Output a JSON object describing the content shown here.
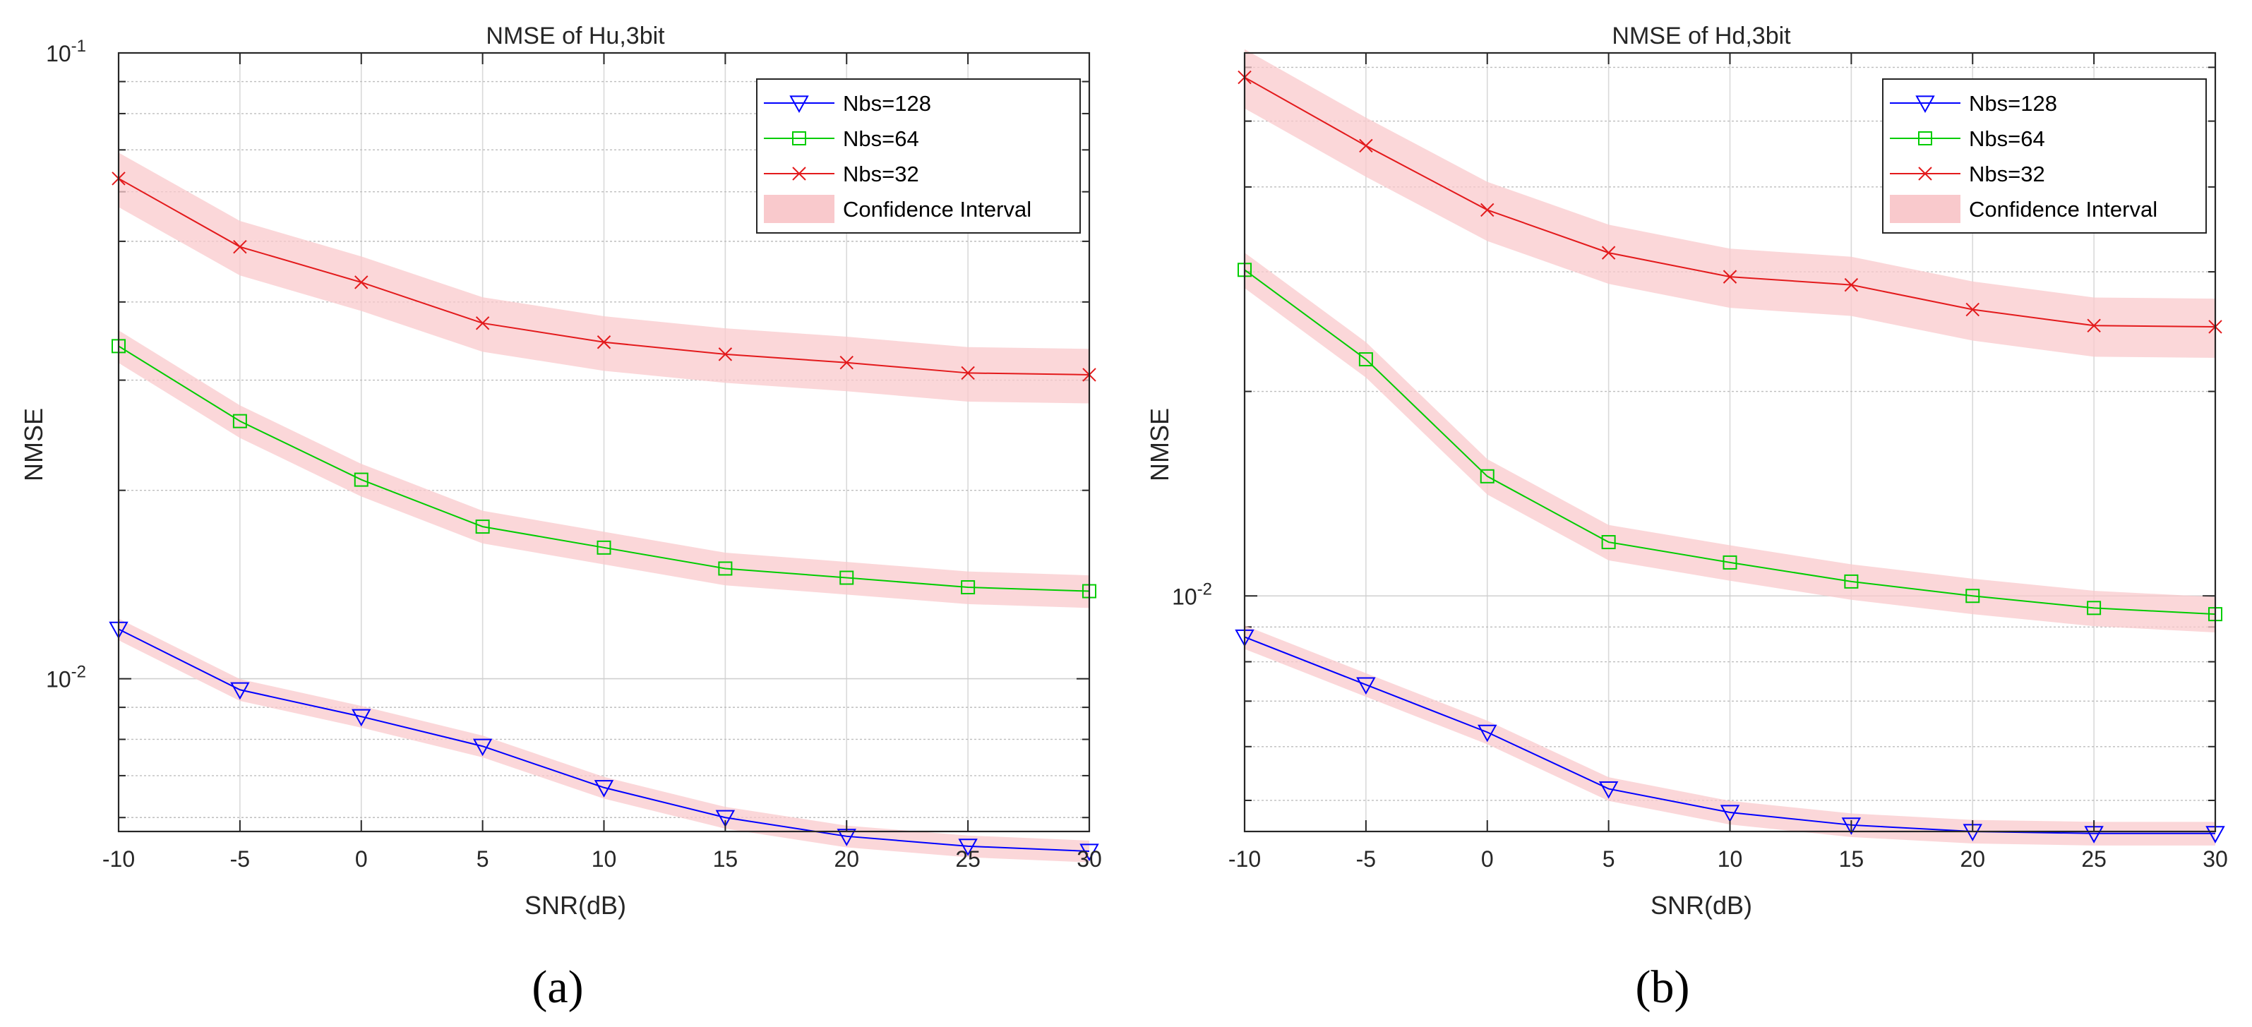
{
  "colors": {
    "nbs128": "#0000ff",
    "nbs64": "#00cc00",
    "nbs32": "#e31a1c",
    "band": "#f9c9cc",
    "grid": "#d9d9d9",
    "axis": "#262626"
  },
  "chart_data": [
    {
      "type": "line",
      "caption": "(a)",
      "title": "NMSE of Hu,3bit",
      "xlabel": "SNR(dB)",
      "ylabel": "NMSE",
      "yscale": "log",
      "x": [
        -10,
        -5,
        0,
        5,
        10,
        15,
        20,
        25,
        30
      ],
      "xlim": [
        -10,
        30
      ],
      "ylim": [
        0.0057,
        0.1
      ],
      "x_tick_labels": [
        "-10",
        "-5",
        "0",
        "5",
        "10",
        "15",
        "20",
        "25",
        "30"
      ],
      "y_tick_labels": [
        {
          "value": 0.1,
          "base": "10",
          "exp": "-1"
        },
        {
          "value": 0.01,
          "base": "10",
          "exp": "-2"
        }
      ],
      "grid": true,
      "legend_position": "top-right",
      "series": [
        {
          "name": "Nbs=128",
          "marker": "triangle-down",
          "color_key": "nbs128",
          "values": [
            0.012,
            0.0096,
            0.0087,
            0.0078,
            0.0067,
            0.006,
            0.0056,
            0.0054,
            0.0053
          ],
          "band": 0.04
        },
        {
          "name": "Nbs=64",
          "marker": "square",
          "color_key": "nbs64",
          "values": [
            0.034,
            0.0258,
            0.0208,
            0.0175,
            0.0162,
            0.015,
            0.0145,
            0.014,
            0.0138
          ],
          "band": 0.06
        },
        {
          "name": "Nbs=32",
          "marker": "x",
          "color_key": "nbs32",
          "values": [
            0.063,
            0.049,
            0.043,
            0.037,
            0.0345,
            0.033,
            0.032,
            0.0308,
            0.0306
          ],
          "band": 0.1
        }
      ],
      "legend_entries": [
        "Nbs=128",
        "Nbs=64",
        "Nbs=32",
        "Confidence Interval"
      ]
    },
    {
      "type": "line",
      "caption": "(b)",
      "title": "NMSE of Hd,3bit",
      "xlabel": "SNR(dB)",
      "ylabel": "NMSE",
      "yscale": "log",
      "x": [
        -10,
        -5,
        0,
        5,
        10,
        15,
        20,
        25,
        30
      ],
      "xlim": [
        -10,
        30
      ],
      "ylim": [
        0.0045,
        0.063
      ],
      "x_tick_labels": [
        "-10",
        "-5",
        "0",
        "5",
        "10",
        "15",
        "20",
        "25",
        "30"
      ],
      "y_tick_labels": [
        {
          "value": 0.01,
          "base": "10",
          "exp": "-2"
        }
      ],
      "grid": true,
      "legend_position": "top-right",
      "series": [
        {
          "name": "Nbs=128",
          "marker": "triangle-down",
          "color_key": "nbs128",
          "values": [
            0.0087,
            0.0074,
            0.0063,
            0.0052,
            0.0048,
            0.0046,
            0.0045,
            0.00447,
            0.00447
          ],
          "band": 0.04
        },
        {
          "name": "Nbs=64",
          "marker": "square",
          "color_key": "nbs64",
          "values": [
            0.0302,
            0.0223,
            0.015,
            0.012,
            0.0112,
            0.0105,
            0.01,
            0.0096,
            0.0094
          ],
          "band": 0.06
        },
        {
          "name": "Nbs=32",
          "marker": "x",
          "color_key": "nbs32",
          "values": [
            0.058,
            0.046,
            0.037,
            0.032,
            0.0295,
            0.0287,
            0.0264,
            0.025,
            0.0249
          ],
          "band": 0.1
        }
      ],
      "legend_entries": [
        "Nbs=128",
        "Nbs=64",
        "Nbs=32",
        "Confidence Interval"
      ]
    }
  ]
}
